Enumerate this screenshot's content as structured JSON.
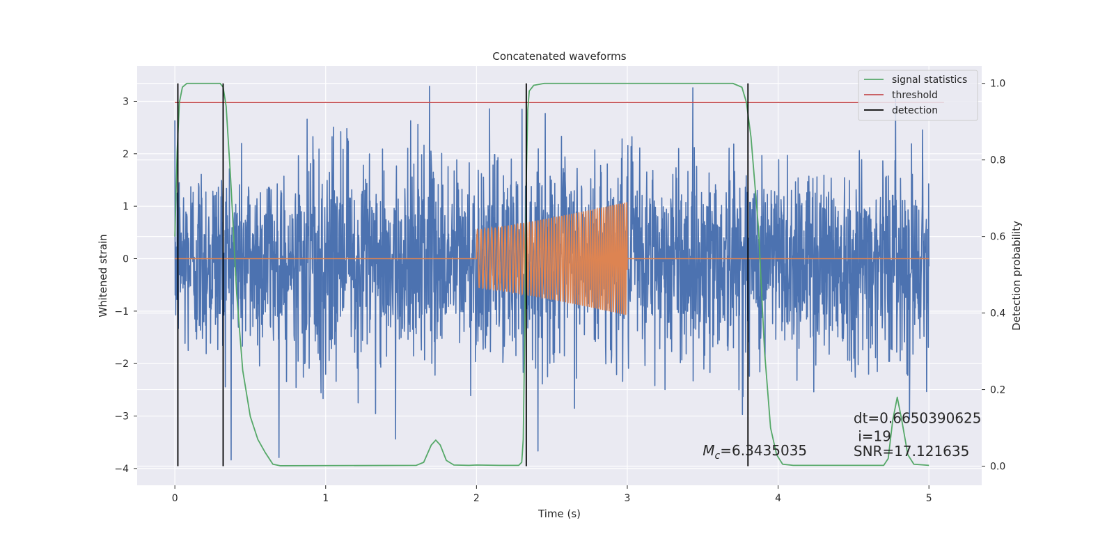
{
  "chart_data": {
    "type": "line",
    "title": "Concatenated waveforms",
    "xlabel": "Time (s)",
    "ylabel": "Whitened strain",
    "y2label": "Detection probability",
    "xlim": [
      -0.25,
      5.35
    ],
    "ylim": [
      -4.32,
      3.67
    ],
    "y2lim": [
      -0.05,
      1.045
    ],
    "xticks": [
      0,
      1,
      2,
      3,
      4,
      5
    ],
    "yticks": [
      -4,
      -3,
      -2,
      -1,
      0,
      1,
      2,
      3
    ],
    "y2ticks": [
      0.0,
      0.2,
      0.4,
      0.6,
      0.8,
      1.0
    ],
    "colors": {
      "background": "#eaeaf2",
      "grid": "#ffffff",
      "strain": "#4c72b0",
      "template": "#dd8452",
      "signal_statistics": "#55a868",
      "threshold": "#c44e52",
      "detection": "#000000"
    },
    "legend": {
      "location": "top-right",
      "entries": [
        {
          "label": "signal statistics",
          "color": "#55a868"
        },
        {
          "label": "threshold",
          "color": "#c44e52"
        },
        {
          "label": "detection",
          "color": "#000000"
        }
      ]
    },
    "series": [
      {
        "name": "whitened strain",
        "axis": "left",
        "x_range": [
          0,
          5
        ],
        "amplitude_sigma": 0.95,
        "peak_range": [
          -3.9,
          3.3
        ]
      },
      {
        "name": "template waveform",
        "axis": "left",
        "x_range": [
          0,
          5
        ],
        "chirp_start": 2.0,
        "chirp_end": 3.0,
        "amplitude_start": 0.55,
        "amplitude_end": 1.08
      },
      {
        "name": "signal statistics",
        "axis": "right",
        "points": [
          [
            0.0,
            0.6
          ],
          [
            0.015,
            0.82
          ],
          [
            0.03,
            0.95
          ],
          [
            0.05,
            0.99
          ],
          [
            0.08,
            1.0
          ],
          [
            0.3,
            1.0
          ],
          [
            0.32,
            0.99
          ],
          [
            0.34,
            0.94
          ],
          [
            0.37,
            0.75
          ],
          [
            0.41,
            0.45
          ],
          [
            0.45,
            0.25
          ],
          [
            0.5,
            0.13
          ],
          [
            0.55,
            0.07
          ],
          [
            0.6,
            0.035
          ],
          [
            0.65,
            0.005
          ],
          [
            0.7,
            0.001
          ],
          [
            1.6,
            0.002
          ],
          [
            1.65,
            0.01
          ],
          [
            1.7,
            0.055
          ],
          [
            1.73,
            0.068
          ],
          [
            1.76,
            0.055
          ],
          [
            1.8,
            0.015
          ],
          [
            1.85,
            0.003
          ],
          [
            1.95,
            0.002
          ],
          [
            2.0,
            0.003
          ],
          [
            2.15,
            0.002
          ],
          [
            2.28,
            0.002
          ],
          [
            2.3,
            0.01
          ],
          [
            2.31,
            0.07
          ],
          [
            2.32,
            0.35
          ],
          [
            2.33,
            0.75
          ],
          [
            2.34,
            0.93
          ],
          [
            2.35,
            0.98
          ],
          [
            2.38,
            0.995
          ],
          [
            2.45,
            1.0
          ],
          [
            3.7,
            1.0
          ],
          [
            3.76,
            0.99
          ],
          [
            3.79,
            0.95
          ],
          [
            3.82,
            0.86
          ],
          [
            3.87,
            0.62
          ],
          [
            3.91,
            0.3
          ],
          [
            3.95,
            0.1
          ],
          [
            3.99,
            0.03
          ],
          [
            4.03,
            0.005
          ],
          [
            4.1,
            0.002
          ],
          [
            4.7,
            0.002
          ],
          [
            4.73,
            0.02
          ],
          [
            4.76,
            0.12
          ],
          [
            4.79,
            0.18
          ],
          [
            4.82,
            0.12
          ],
          [
            4.86,
            0.03
          ],
          [
            4.9,
            0.005
          ],
          [
            5.0,
            0.002
          ]
        ]
      },
      {
        "name": "threshold",
        "axis": "right",
        "x_range": [
          0,
          5.1
        ],
        "value": 0.95
      },
      {
        "name": "detection",
        "axis": "right",
        "x": [
          0.02,
          0.32,
          2.33,
          3.8
        ],
        "y_range": [
          0.0,
          1.0
        ]
      }
    ],
    "annotations": [
      {
        "id": "mc",
        "label": "M",
        "subscript": "c",
        "text": "=6.3435035",
        "x": 3.5,
        "y": -3.75
      },
      {
        "id": "dt",
        "text": "dt=0.6650390625",
        "x": 4.5,
        "y": -3.13
      },
      {
        "id": "i",
        "text": " i=19",
        "x": 4.5,
        "y": -3.48
      },
      {
        "id": "snr",
        "text": "SNR=17.121635",
        "x": 4.5,
        "y": -3.76
      }
    ]
  }
}
